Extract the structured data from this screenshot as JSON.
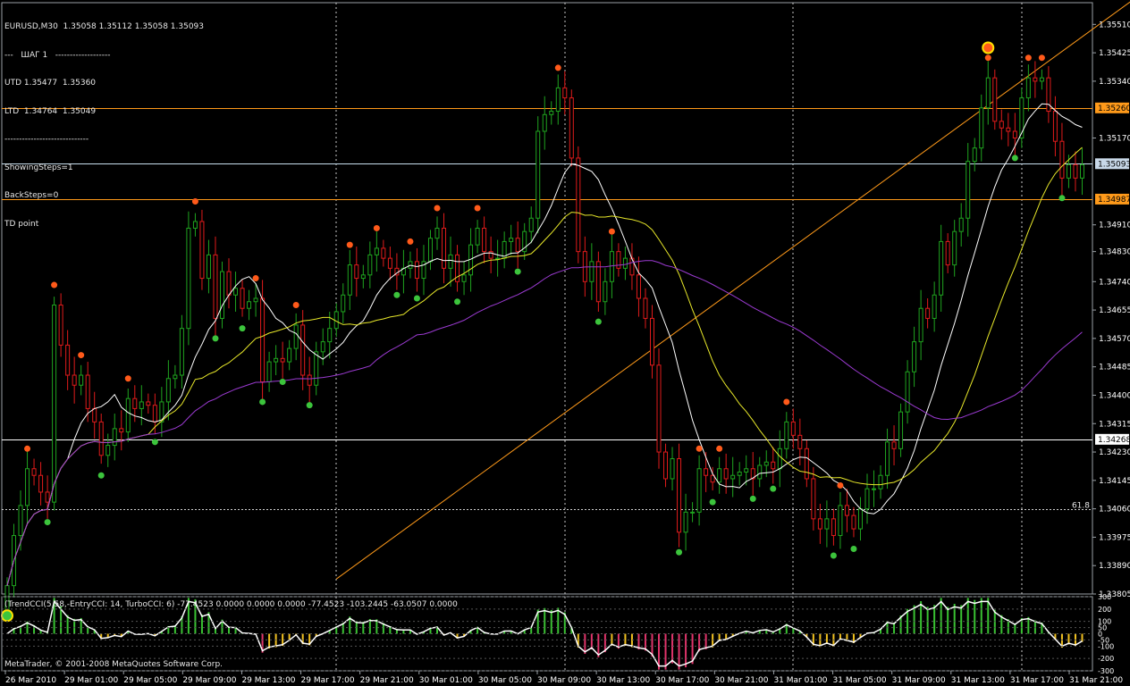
{
  "info": {
    "symbol_line": "EURUSD,M30  1.35058 1.35112 1.35058 1.35093",
    "step_line": "---   ШАГ 1   -------------------",
    "utd_line": "UTD 1.35477  1.35360",
    "ltd_line": "LTD  1.34764  1.35049",
    "separator": "-----------------------------",
    "showing_steps": "ShowingSteps=1",
    "back_steps": "BackSteps=0",
    "td_point": "TD point"
  },
  "subwindow": {
    "title": "(TrendCCI(5,58,-EntryCCI: 14, TurboCCI: 6) -77.4523 0.0000 0.0000 0.0000 -77.4523 -103.2445 -63.0507 0.0000",
    "copyright": "MetaTrader, © 2001-2008 MetaQuotes Software Corp."
  },
  "colors": {
    "background": "#000000",
    "grid": "#9aa0a6",
    "bull": "#1fa41f",
    "bear": "#e01b1b",
    "axis_text": "#ffffff",
    "orange": "#ff9a1a",
    "white_line": "#ffffff",
    "yellow_line": "#e8e82a",
    "purple_line": "#9a3ad0"
  },
  "chart_data": [
    {
      "type": "candlestick",
      "symbol": "EURUSD",
      "timeframe": "M30",
      "ylim": [
        1.33805,
        1.35575
      ],
      "y_ticks": [
        1.3551,
        1.35425,
        1.3534,
        1.3517,
        1.3491,
        1.3483,
        1.3474,
        1.34655,
        1.3457,
        1.34485,
        1.344,
        1.34315,
        1.3423,
        1.34145,
        1.3406,
        1.33975,
        1.3389,
        1.33805
      ],
      "y_tick_labels": [
        "1.35510",
        "1.35425",
        "1.35340",
        "1.35170",
        "1.34910",
        "1.34830",
        "1.34740",
        "1.34655",
        "1.34570",
        "1.34485",
        "1.34400",
        "1.34315",
        "1.34230",
        "1.34145",
        "1.34060",
        "1.33975",
        "1.33890",
        "1.33805"
      ],
      "x_labels": [
        "26 Mar 2010",
        "29 Mar 01:00",
        "29 Mar 05:00",
        "29 Mar 09:00",
        "29 Mar 13:00",
        "29 Mar 17:00",
        "29 Mar 21:00",
        "30 Mar 01:00",
        "30 Mar 05:00",
        "30 Mar 09:00",
        "30 Mar 13:00",
        "30 Mar 17:00",
        "30 Mar 21:00",
        "31 Mar 01:00",
        "31 Mar 05:00",
        "31 Mar 09:00",
        "31 Mar 13:00",
        "31 Mar 17:00",
        "31 Mar 21:00"
      ],
      "price_labels": [
        {
          "value": 1.3526,
          "label": "1.35260",
          "color": "#ff9a1a"
        },
        {
          "value": 1.35093,
          "label": "1.35093",
          "color": "#c8d8e8"
        },
        {
          "value": 1.34987,
          "label": "1.34987",
          "color": "#ff9a1a"
        },
        {
          "value": 1.34268,
          "label": "1.34268",
          "color": "#ffffff"
        }
      ],
      "level_label": "61.8",
      "fib_level": 1.3406,
      "horizontal_lines": [
        {
          "value": 1.3526,
          "color": "#ff9a1a"
        },
        {
          "value": 1.35093,
          "color": "#c8e0f0"
        },
        {
          "value": 1.34987,
          "color": "#ff9a1a"
        },
        {
          "value": 1.34268,
          "color": "#ffffff"
        }
      ],
      "trendline": {
        "from": [
          1.3385,
          49
        ],
        "to": [
          1.3559,
          168
        ],
        "color": "#ff9a1a"
      },
      "closes": [
        1.3383,
        1.3398,
        1.3407,
        1.3418,
        1.3416,
        1.3411,
        1.3408,
        1.3467,
        1.3455,
        1.3446,
        1.3443,
        1.3446,
        1.3436,
        1.3432,
        1.3422,
        1.3425,
        1.343,
        1.3429,
        1.3439,
        1.3436,
        1.3438,
        1.3437,
        1.3432,
        1.3438,
        1.3445,
        1.3446,
        1.346,
        1.349,
        1.3492,
        1.3475,
        1.3482,
        1.3463,
        1.3477,
        1.347,
        1.3472,
        1.3466,
        1.3468,
        1.3469,
        1.3444,
        1.345,
        1.3451,
        1.345,
        1.3454,
        1.3461,
        1.3446,
        1.3443,
        1.3453,
        1.3456,
        1.346,
        1.3465,
        1.347,
        1.3479,
        1.3475,
        1.3476,
        1.3482,
        1.3484,
        1.3481,
        1.3478,
        1.3476,
        1.3478,
        1.348,
        1.3475,
        1.348,
        1.3487,
        1.349,
        1.3478,
        1.3482,
        1.3474,
        1.3476,
        1.3485,
        1.349,
        1.3483,
        1.3481,
        1.3481,
        1.3486,
        1.3487,
        1.3483,
        1.3489,
        1.3493,
        1.3519,
        1.3524,
        1.3525,
        1.3532,
        1.3529,
        1.3511,
        1.3483,
        1.3474,
        1.348,
        1.3468,
        1.3474,
        1.3483,
        1.3478,
        1.3481,
        1.3476,
        1.3469,
        1.3463,
        1.3449,
        1.3423,
        1.3415,
        1.3421,
        1.3399,
        1.3405,
        1.3405,
        1.3418,
        1.3416,
        1.3414,
        1.3418,
        1.3415,
        1.3416,
        1.3417,
        1.3418,
        1.3415,
        1.3419,
        1.342,
        1.3418,
        1.3424,
        1.3432,
        1.3428,
        1.3424,
        1.3415,
        1.3403,
        1.34,
        1.3403,
        1.3398,
        1.3407,
        1.3404,
        1.34,
        1.3406,
        1.3412,
        1.3412,
        1.3416,
        1.3426,
        1.3424,
        1.3435,
        1.3447,
        1.3456,
        1.3466,
        1.3463,
        1.347,
        1.3486,
        1.3479,
        1.3489,
        1.3493,
        1.351,
        1.3514,
        1.3526,
        1.3535,
        1.3522,
        1.352,
        1.3519,
        1.3517,
        1.3529,
        1.3535,
        1.3534,
        1.3535,
        1.3525,
        1.3516,
        1.3505,
        1.3509,
        1.3505,
        1.3509
      ]
    },
    {
      "type": "histogram+line",
      "name": "TrendCCI",
      "ylim": [
        -300,
        300
      ],
      "y_tick_labels": [
        "300",
        "200",
        "100",
        "50",
        "0",
        "-50",
        "-100",
        "-200",
        "-300"
      ]
    }
  ]
}
